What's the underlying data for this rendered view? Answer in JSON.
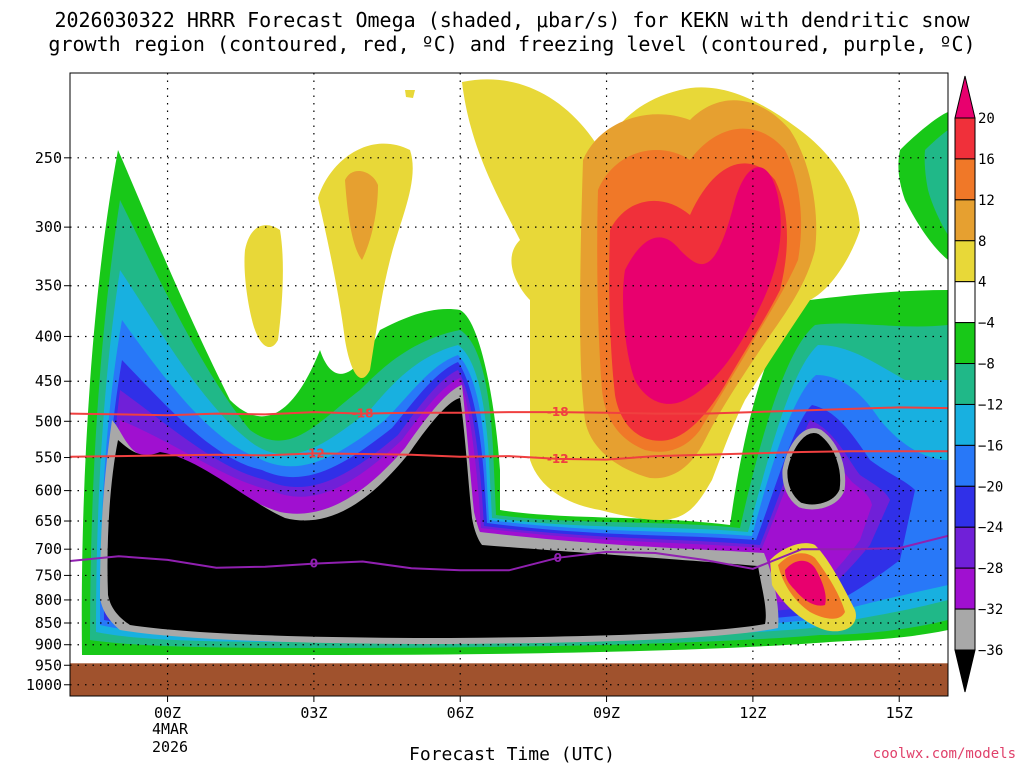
{
  "header": {
    "line1": "2026030322 HRRR Forecast Omega (shaded, μbar/s) for KEKN with dendritic snow",
    "line2": "growth region (contoured, red, ºC) and freezing level (contoured, purple, ºC)"
  },
  "footer": {
    "xlabel": "Forecast Time (UTC)",
    "credit": "coolwx.com/models",
    "date_month": "4MAR",
    "date_year": "2026"
  },
  "chart_data": {
    "type": "heatmap",
    "title": "2026030322 HRRR Forecast Omega (shaded, μbar/s) for KEKN with dendritic snow growth region (contoured, red, ºC) and freezing level (contoured, purple, ºC)",
    "xlabel": "Forecast Time (UTC)",
    "ylabel": "",
    "x_ticks": [
      "00Z",
      "03Z",
      "06Z",
      "09Z",
      "12Z",
      "15Z"
    ],
    "x_tick_hours": [
      0,
      3,
      6,
      9,
      12,
      15
    ],
    "xlim_hours": [
      -2,
      16
    ],
    "y_ticks": [
      250,
      300,
      350,
      400,
      450,
      500,
      550,
      600,
      650,
      700,
      750,
      800,
      850,
      900,
      950,
      1000
    ],
    "ylim_hpa": [
      200,
      1030
    ],
    "y_scale": "log-pressure",
    "ground_level_hpa": 945,
    "grid": true,
    "colorbar": {
      "ticks": [
        "20",
        "16",
        "12",
        "8",
        "4",
        "−4",
        "−8",
        "−12",
        "−16",
        "−20",
        "−24",
        "−28",
        "−32",
        "−36"
      ],
      "colors": [
        "#e8006e",
        "#f0303a",
        "#f07828",
        "#e6a030",
        "#e8d838",
        "#ffffff",
        "#18c818",
        "#20b888",
        "#18b0e0",
        "#2878f8",
        "#3030e8",
        "#7020d8",
        "#a010d0",
        "#a8a8a8",
        "#000000"
      ]
    },
    "contours": [
      {
        "name": "-18",
        "color": "#f04040",
        "points": [
          [
            -2,
            490
          ],
          [
            0,
            492
          ],
          [
            1,
            490
          ],
          [
            2,
            491
          ],
          [
            3,
            488
          ],
          [
            4,
            490
          ],
          [
            5,
            489
          ],
          [
            6,
            489
          ],
          [
            7,
            488
          ],
          [
            8,
            488
          ],
          [
            9,
            489
          ],
          [
            10,
            490
          ],
          [
            11,
            490
          ],
          [
            12,
            488
          ],
          [
            13,
            486
          ],
          [
            14,
            484
          ],
          [
            15,
            482
          ],
          [
            16,
            483
          ]
        ]
      },
      {
        "name": "-12",
        "color": "#f04040",
        "points": [
          [
            -2,
            549
          ],
          [
            -1,
            548
          ],
          [
            0,
            547
          ],
          [
            1,
            546
          ],
          [
            2,
            547
          ],
          [
            3,
            544
          ],
          [
            4,
            545
          ],
          [
            5,
            546
          ],
          [
            6,
            549
          ],
          [
            7,
            548
          ],
          [
            8,
            552
          ],
          [
            9,
            553
          ],
          [
            10,
            548
          ],
          [
            11,
            546
          ],
          [
            12,
            544
          ],
          [
            13,
            542
          ],
          [
            14,
            541
          ],
          [
            15,
            541
          ],
          [
            16,
            541
          ]
        ]
      },
      {
        "name": "0",
        "color": "#9020b0",
        "points": [
          [
            -2,
            722
          ],
          [
            -1,
            713
          ],
          [
            0,
            720
          ],
          [
            1,
            735
          ],
          [
            2,
            733
          ],
          [
            3,
            727
          ],
          [
            4,
            723
          ],
          [
            5,
            736
          ],
          [
            6,
            740
          ],
          [
            7,
            740
          ],
          [
            8,
            716
          ],
          [
            9,
            705
          ],
          [
            10,
            707
          ],
          [
            11,
            720
          ],
          [
            12,
            737
          ],
          [
            13,
            700
          ],
          [
            14,
            700
          ],
          [
            15,
            698
          ],
          [
            16,
            676
          ]
        ]
      }
    ]
  }
}
